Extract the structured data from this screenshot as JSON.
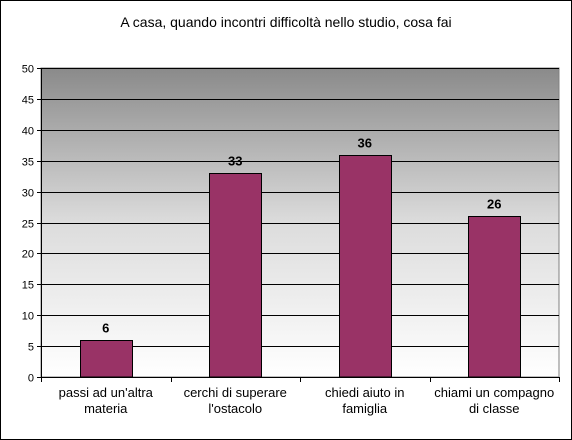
{
  "chart_data": {
    "type": "bar",
    "title": "A casa, quando incontri difficoltà nello studio, cosa fai",
    "categories": [
      [
        "passi ad un'altra",
        "materia"
      ],
      [
        "cerchi di superare",
        "l'ostacolo"
      ],
      [
        "chiedi aiuto in",
        "famiglia"
      ],
      [
        "chiami un compagno",
        "di classe"
      ]
    ],
    "values": [
      6,
      33,
      36,
      26
    ],
    "data_labels": [
      "6",
      "33",
      "36",
      "26"
    ],
    "ylim": [
      0,
      50
    ],
    "yticks": [
      0,
      5,
      10,
      15,
      20,
      25,
      30,
      35,
      40,
      45,
      50
    ],
    "xlabel": "",
    "ylabel": "",
    "grid": true,
    "plot_background": "gradient-gray",
    "bar_color": "#993366",
    "bar_border": "#000000"
  }
}
